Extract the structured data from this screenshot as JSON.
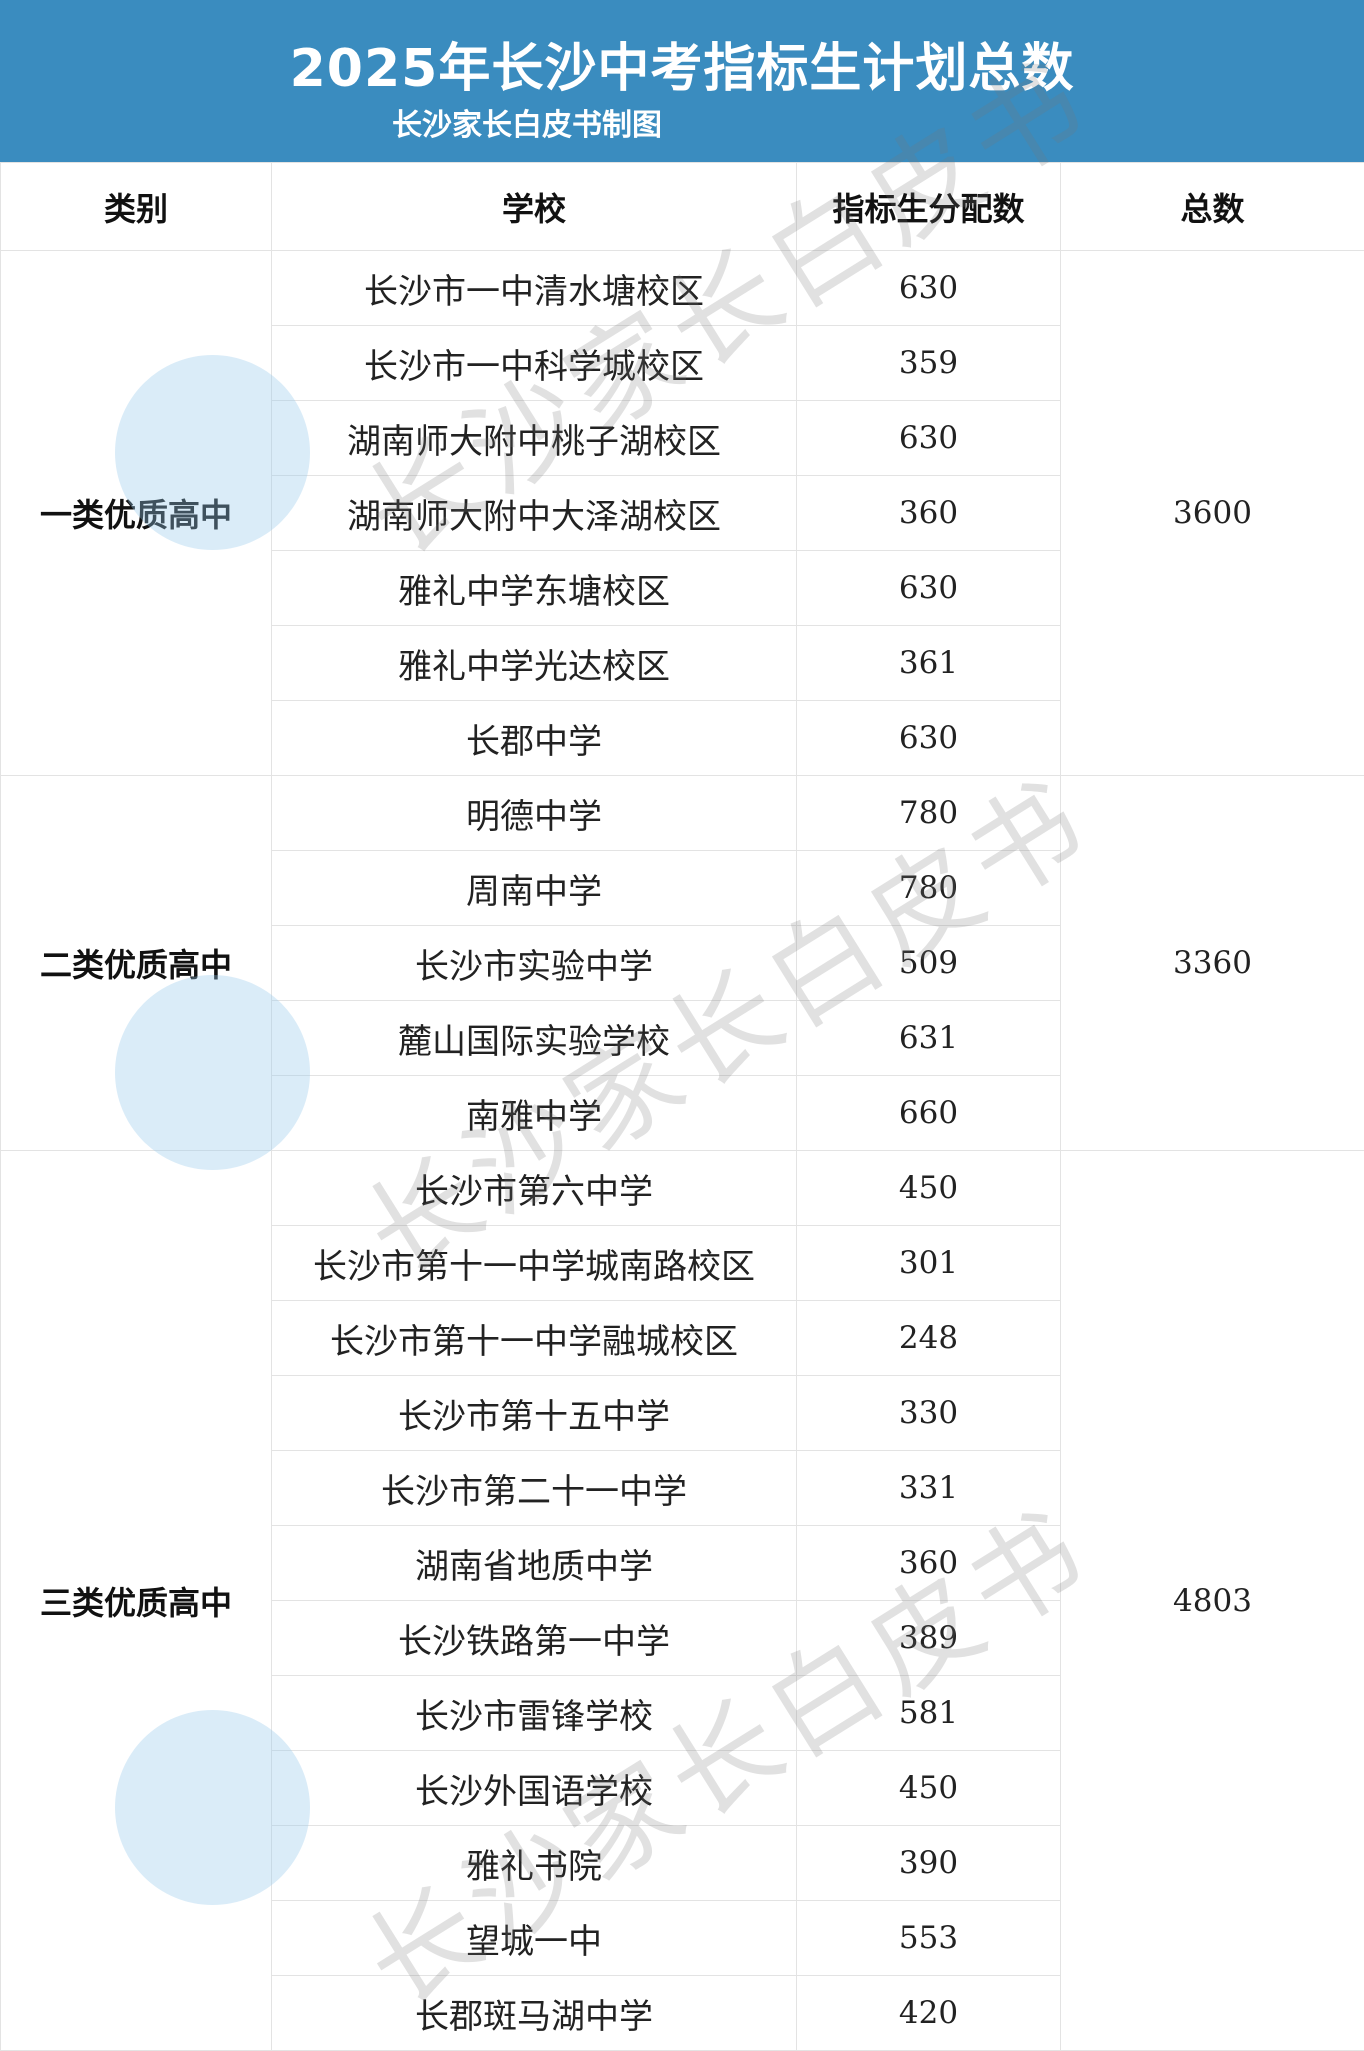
{
  "header": {
    "title": "2025年长沙中考指标生计划总数",
    "subtitle": "长沙家长白皮书制图",
    "bg_color": "#3a8cbf"
  },
  "columns": [
    "类别",
    "学校",
    "指标生分配数",
    "总数"
  ],
  "groups": [
    {
      "category": "一类优质高中",
      "total": "3600",
      "rows": [
        {
          "school": "长沙市一中清水塘校区",
          "quota": "630"
        },
        {
          "school": "长沙市一中科学城校区",
          "quota": "359"
        },
        {
          "school": "湖南师大附中桃子湖校区",
          "quota": "630"
        },
        {
          "school": "湖南师大附中大泽湖校区",
          "quota": "360"
        },
        {
          "school": "雅礼中学东塘校区",
          "quota": "630"
        },
        {
          "school": "雅礼中学光达校区",
          "quota": "361"
        },
        {
          "school": "长郡中学",
          "quota": "630"
        }
      ]
    },
    {
      "category": "二类优质高中",
      "total": "3360",
      "rows": [
        {
          "school": "明德中学",
          "quota": "780"
        },
        {
          "school": "周南中学",
          "quota": "780"
        },
        {
          "school": "长沙市实验中学",
          "quota": "509"
        },
        {
          "school": "麓山国际实验学校",
          "quota": "631"
        },
        {
          "school": "南雅中学",
          "quota": "660"
        }
      ]
    },
    {
      "category": "三类优质高中",
      "total": "4803",
      "rows": [
        {
          "school": "长沙市第六中学",
          "quota": "450"
        },
        {
          "school": "长沙市第十一中学城南路校区",
          "quota": "301"
        },
        {
          "school": "长沙市第十一中学融城校区",
          "quota": "248"
        },
        {
          "school": "长沙市第十五中学",
          "quota": "330"
        },
        {
          "school": "长沙市第二十一中学",
          "quota": "331"
        },
        {
          "school": "湖南省地质中学",
          "quota": "360"
        },
        {
          "school": "长沙铁路第一中学",
          "quota": "389"
        },
        {
          "school": "长沙市雷锋学校",
          "quota": "581"
        },
        {
          "school": "长沙外国语学校",
          "quota": "450"
        },
        {
          "school": "雅礼书院",
          "quota": "390"
        },
        {
          "school": "望城一中",
          "quota": "553"
        },
        {
          "school": "长郡斑马湖中学",
          "quota": "420"
        }
      ]
    }
  ],
  "watermark": {
    "text": "长沙家长白皮书"
  }
}
